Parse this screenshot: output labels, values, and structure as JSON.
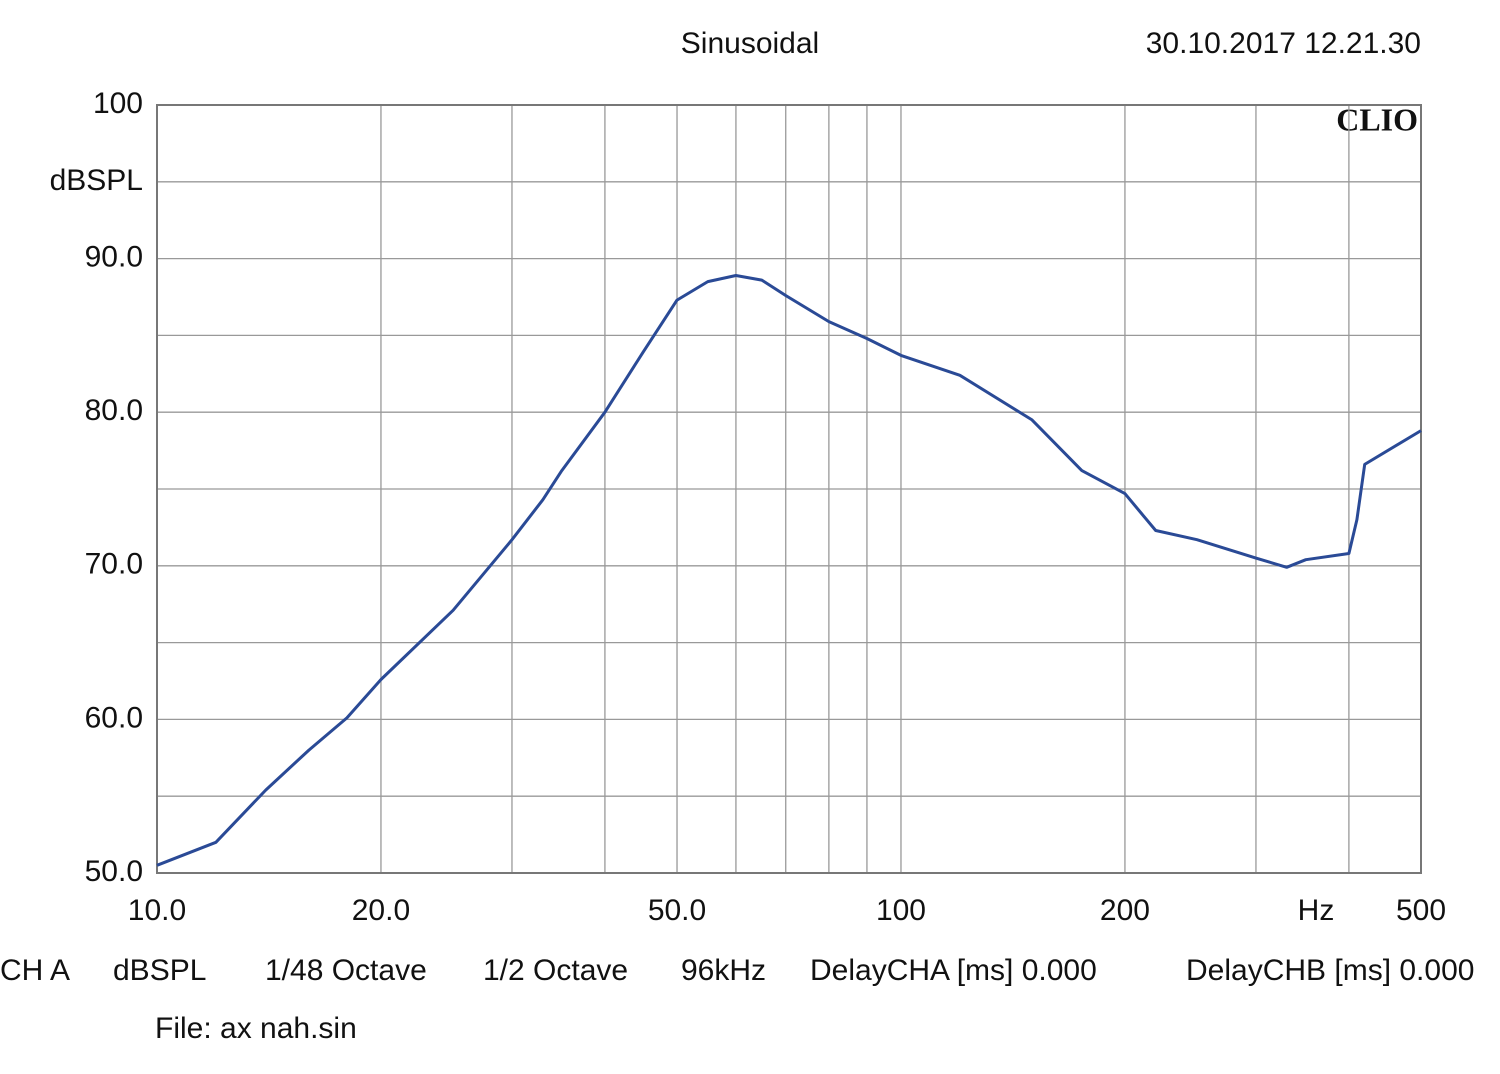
{
  "chart_data": {
    "type": "line",
    "title": "Sinusoidal",
    "timestamp": "30.10.2017 12.21.30",
    "brand": "CLIO",
    "x_label": "Hz",
    "y_label": "dBSPL",
    "log_x": true,
    "grid": true,
    "xlim": [
      10,
      500
    ],
    "ylim": [
      50,
      100
    ],
    "xticks": [
      {
        "value": 10,
        "label": "10.0"
      },
      {
        "value": 20,
        "label": "20.0"
      },
      {
        "value": 50,
        "label": "50.0"
      },
      100,
      200,
      500
    ],
    "x_minor_ticks": [
      30,
      40,
      60,
      70,
      80,
      90,
      300,
      400
    ],
    "yticks": [
      {
        "value": 50,
        "label": "50.0"
      },
      {
        "value": 60,
        "label": "60.0"
      },
      {
        "value": 70,
        "label": "70.0"
      },
      {
        "value": 80,
        "label": "80.0"
      },
      {
        "value": 90,
        "label": "90.0"
      },
      100
    ],
    "y_minor_ticks": [
      55,
      65,
      75,
      85,
      95
    ],
    "series": [
      {
        "name": "CH A",
        "color": "#2a4a96",
        "x": [
          10,
          12,
          14,
          16,
          18,
          20,
          25,
          30,
          33,
          35,
          40,
          45,
          50,
          55,
          60,
          65,
          70,
          80,
          90,
          100,
          120,
          150,
          175,
          200,
          220,
          250,
          300,
          330,
          350,
          400,
          410,
          420,
          500
        ],
        "values": [
          50.5,
          52.0,
          55.4,
          58.0,
          60.1,
          62.6,
          67.1,
          71.7,
          74.3,
          76.2,
          80.0,
          83.9,
          87.3,
          88.5,
          88.9,
          88.6,
          87.6,
          85.9,
          84.8,
          83.7,
          82.4,
          79.5,
          76.2,
          74.7,
          72.3,
          71.7,
          70.5,
          69.9,
          70.4,
          70.8,
          73.0,
          76.6,
          78.8
        ]
      }
    ],
    "info": [
      "CH A",
      "dBSPL",
      "1/48 Octave",
      "1/2 Octave",
      "96kHz",
      "DelayCHA [ms] 0.000",
      "DelayCHB [ms] 0.000"
    ],
    "file": "File: ax nah.sin"
  }
}
